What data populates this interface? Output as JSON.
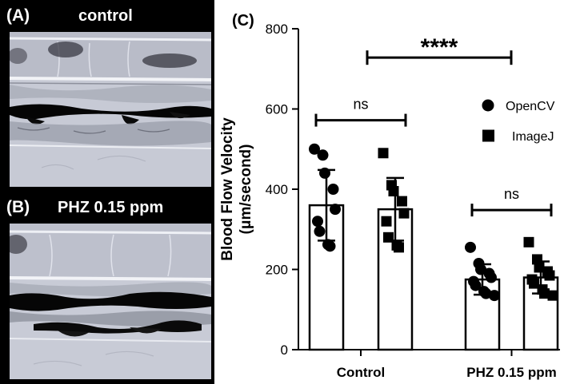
{
  "panels": {
    "a": {
      "letter": "(A)",
      "title": "control"
    },
    "b": {
      "letter": "(B)",
      "title": "PHZ 0.15 ppm"
    },
    "c": {
      "letter": "(C)"
    }
  },
  "chart_data": {
    "type": "bar",
    "ylabel_line1": "Blood Flow Velocity",
    "ylabel_line2": "(μm/second)",
    "ylim": [
      0,
      800
    ],
    "yticks": [
      0,
      200,
      400,
      600,
      800
    ],
    "categories": [
      "Control",
      "PHZ 0.15 ppm"
    ],
    "series": [
      {
        "name": "OpenCV",
        "marker": "circle",
        "values": [
          360,
          175
        ],
        "sd": [
          88,
          38
        ],
        "points": [
          [
            500,
            485,
            440,
            400,
            350,
            320,
            295,
            262,
            258
          ],
          [
            255,
            215,
            200,
            190,
            180,
            170,
            160,
            145,
            140,
            135
          ]
        ]
      },
      {
        "name": "ImageJ",
        "marker": "square",
        "values": [
          350,
          180
        ],
        "sd": [
          78,
          40
        ],
        "points": [
          [
            490,
            410,
            395,
            370,
            340,
            320,
            280,
            260,
            255
          ],
          [
            268,
            225,
            205,
            195,
            185,
            175,
            165,
            150,
            140,
            135
          ]
        ]
      }
    ],
    "annotations": [
      {
        "label": "ns",
        "group": "Control"
      },
      {
        "label": "ns",
        "group": "PHZ 0.15 ppm"
      },
      {
        "label": "****",
        "between": [
          "Control",
          "PHZ 0.15 ppm"
        ]
      }
    ],
    "legend_position": "top-right",
    "grid": false
  }
}
